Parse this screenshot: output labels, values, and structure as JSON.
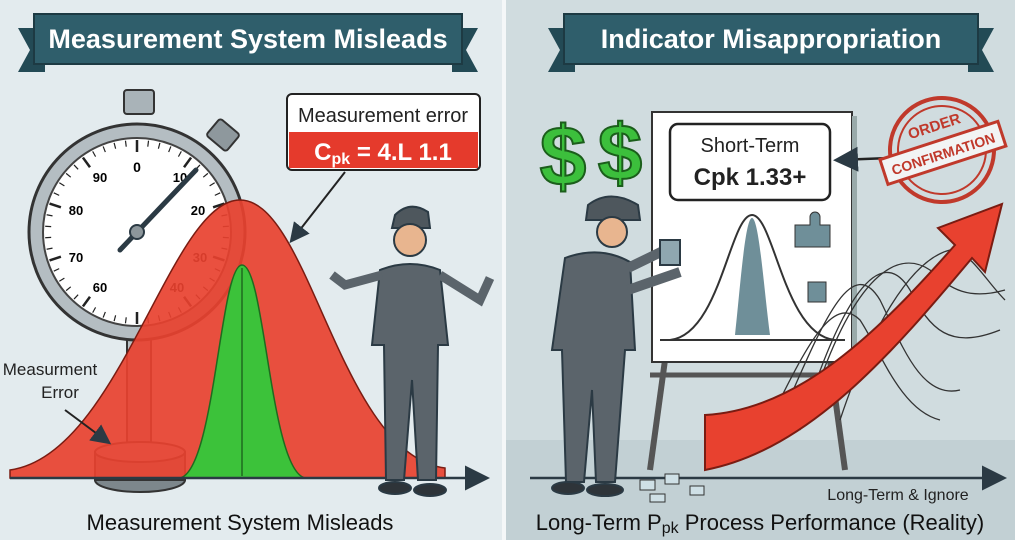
{
  "left_panel": {
    "banner_title": "Measurement System Misleads",
    "callout": {
      "label": "Measurement error",
      "value_prefix": "C",
      "value_sub": "pk",
      "value_rest": " = 4.L 1.1"
    },
    "gauge_ticks": [
      "0",
      "10",
      "20",
      "30",
      "40",
      "60",
      "70",
      "80",
      "90"
    ],
    "side_label_line1": "Measurment",
    "side_label_line2": "Error",
    "footer": "Measurement System Misleads"
  },
  "right_panel": {
    "banner_title": "Indicator Misappropriation",
    "dollar_sign": "$",
    "board": {
      "line1": "Short-Term",
      "line2": "Cpk 1.33+"
    },
    "stamp": {
      "line1": "ORDER",
      "line2": "CONFIRMATION"
    },
    "axis_label": "Long-Term & Ignore",
    "footer_prefix": "Long-Term P",
    "footer_sub": "pk",
    "footer_rest": " Process Performance (Reality)"
  },
  "colors": {
    "banner": "#2f5e6b",
    "red": "#e8412f",
    "green": "#3cc23a",
    "worker": "#5b646b",
    "background": "#e4ecef"
  }
}
